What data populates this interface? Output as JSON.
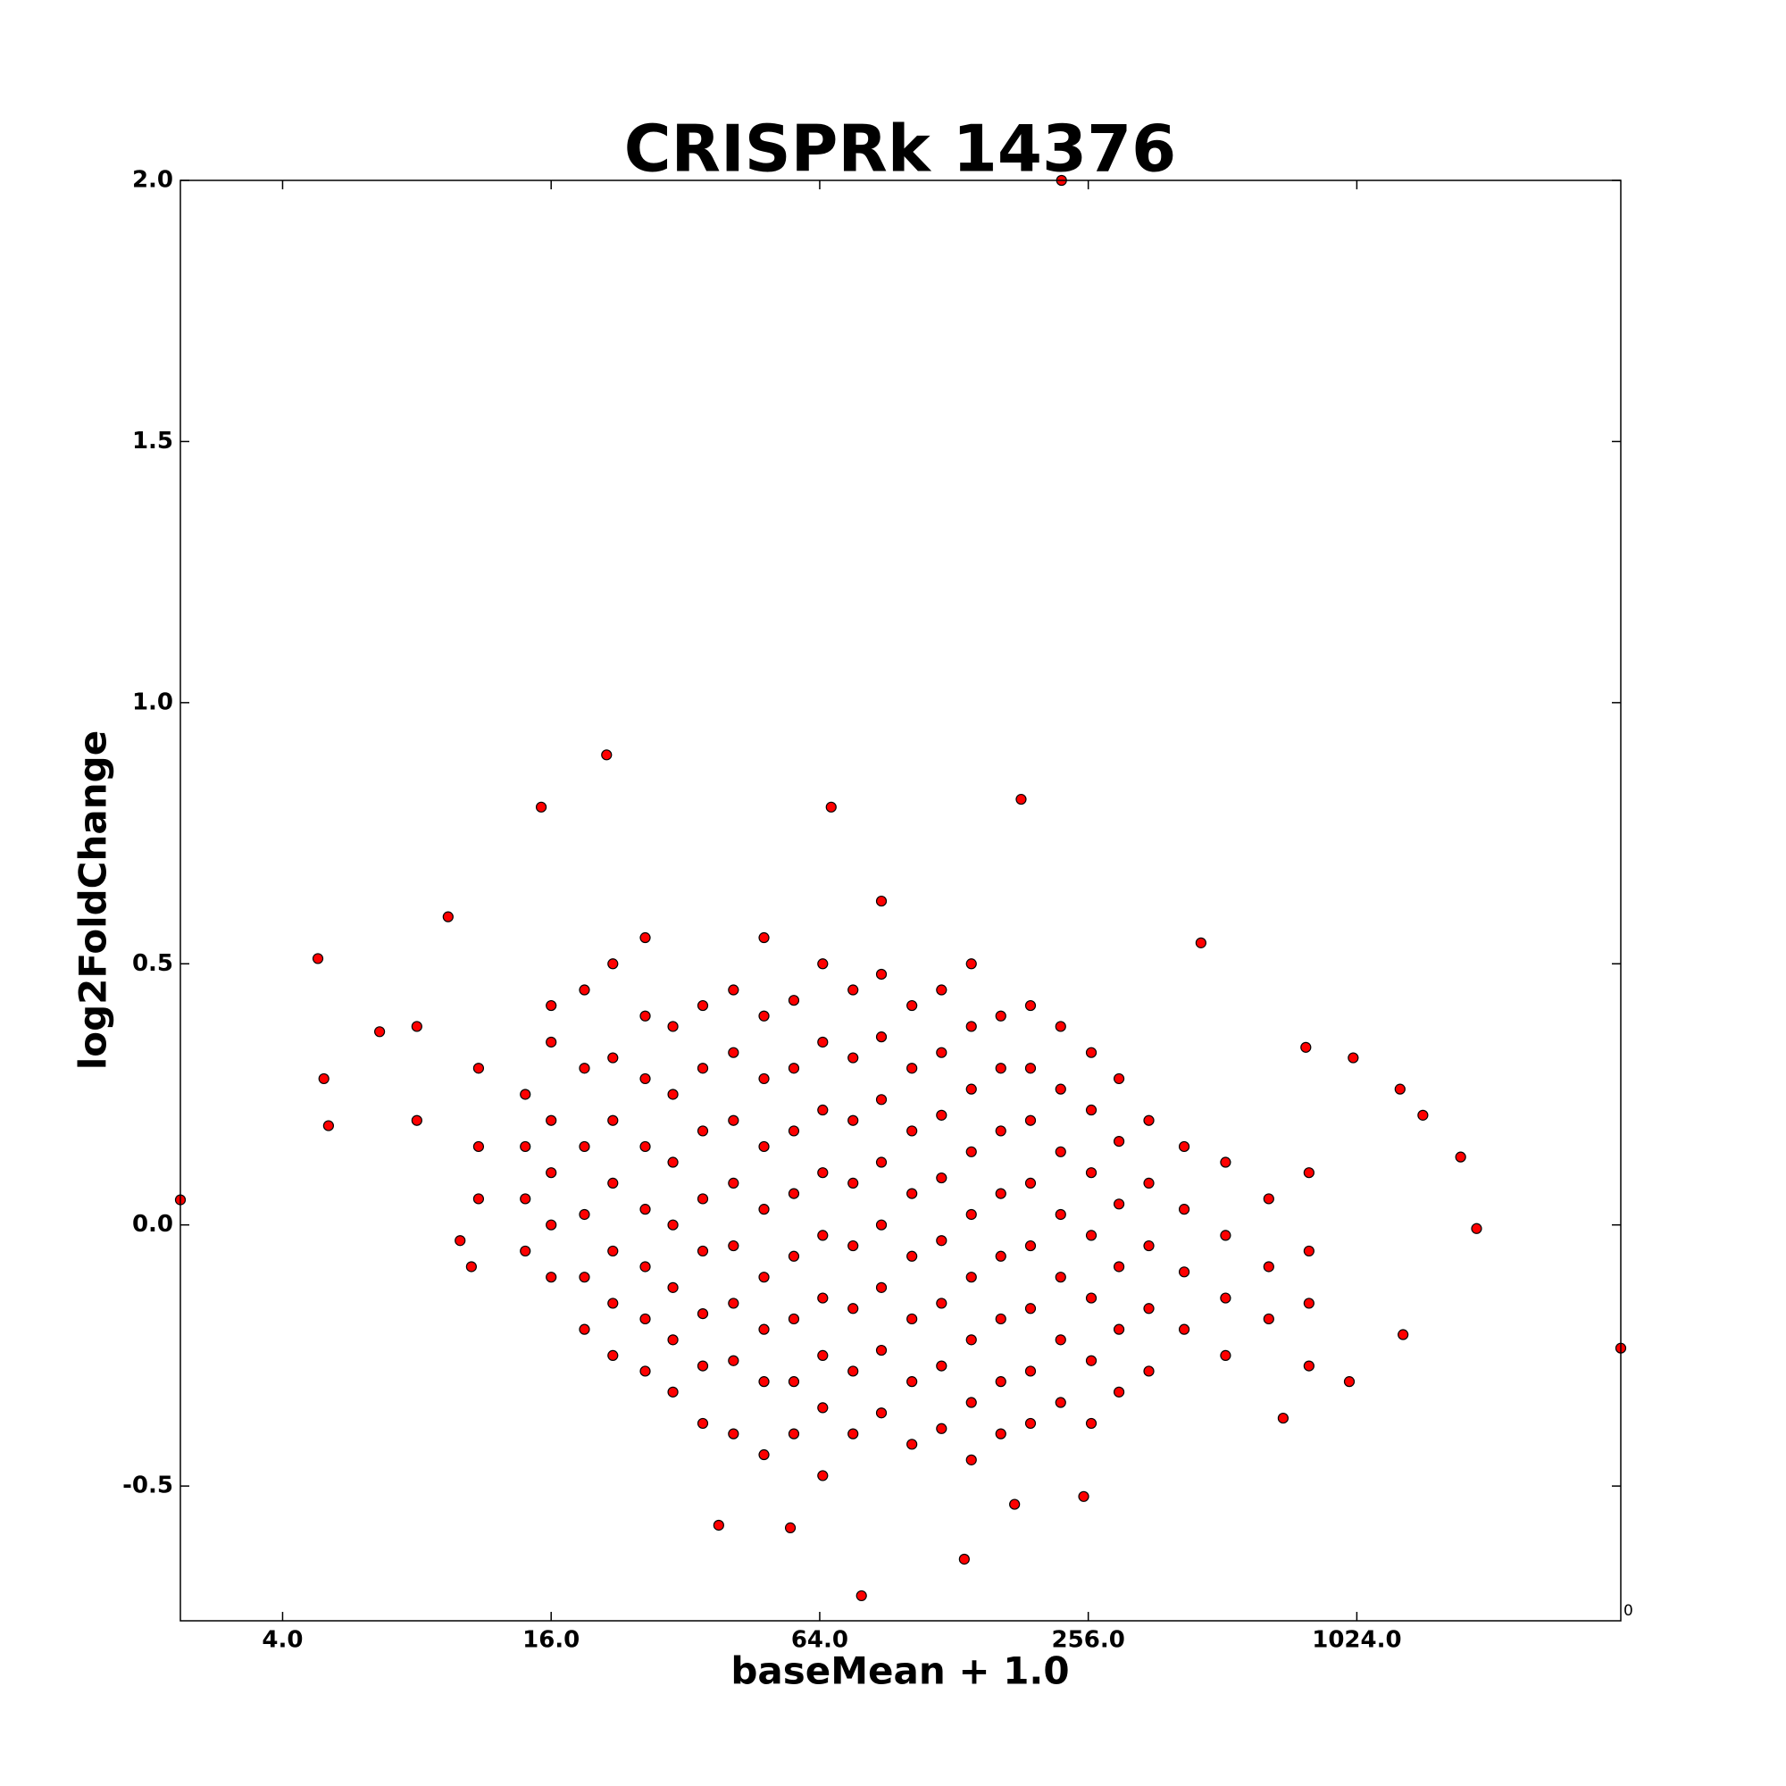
{
  "chart_data": {
    "type": "scatter",
    "title": "CRISPRk 14376",
    "xlabel": "baseMean + 1.0",
    "ylabel": "log2FoldChange",
    "annotation": "0",
    "xscale": "log2",
    "color": "#ff0000",
    "edgecolor": "#000000",
    "xlim": [
      2.36,
      4000
    ],
    "ylim": [
      -0.758,
      2.0
    ],
    "xticks": [
      {
        "value": 4,
        "label": "4.0"
      },
      {
        "value": 16,
        "label": "16.0"
      },
      {
        "value": 64,
        "label": "64.0"
      },
      {
        "value": 256,
        "label": "256.0"
      },
      {
        "value": 1024,
        "label": "1024.0"
      }
    ],
    "yticks": [
      -0.5,
      {
        "value": 0,
        "label": "0.0"
      },
      0.5,
      {
        "value": 1,
        "label": "1.0"
      },
      1.5,
      {
        "value": 2,
        "label": "2.0"
      }
    ],
    "x": [
      2.36,
      4000,
      223,
      21.3,
      67.9,
      181,
      15.2,
      79.4,
      135,
      1900,
      1750,
      1440,
      1280,
      1005,
      4.8,
      4.95,
      5.07,
      6.6,
      9.4,
      458,
      787,
      700,
      38,
      55,
      175,
      250,
      1300,
      985,
      10.6,
      10,
      14,
      14,
      14,
      14,
      16,
      16,
      16,
      16,
      16,
      16,
      19,
      19,
      19,
      19,
      19,
      19,
      22,
      22,
      22,
      22,
      22,
      22,
      22,
      26,
      26,
      26,
      26,
      26,
      26,
      26,
      26,
      30,
      30,
      30,
      30,
      30,
      30,
      30,
      35,
      35,
      35,
      35,
      35,
      35,
      35,
      35,
      41,
      41,
      41,
      41,
      41,
      41,
      41,
      41,
      48,
      48,
      48,
      48,
      48,
      48,
      48,
      48,
      48,
      56,
      56,
      56,
      56,
      56,
      56,
      56,
      56,
      65,
      65,
      65,
      65,
      65,
      65,
      65,
      65,
      65,
      76,
      76,
      76,
      76,
      76,
      76,
      76,
      76,
      88,
      88,
      88,
      88,
      88,
      88,
      88,
      88,
      88,
      103,
      103,
      103,
      103,
      103,
      103,
      103,
      103,
      120,
      120,
      120,
      120,
      120,
      120,
      120,
      120,
      140,
      140,
      140,
      140,
      140,
      140,
      140,
      140,
      140,
      163,
      163,
      163,
      163,
      163,
      163,
      163,
      163,
      190,
      190,
      190,
      190,
      190,
      190,
      190,
      190,
      222,
      222,
      222,
      222,
      222,
      222,
      222,
      260,
      260,
      260,
      260,
      260,
      260,
      260,
      300,
      300,
      300,
      300,
      300,
      300,
      350,
      350,
      350,
      350,
      350,
      420,
      420,
      420,
      420,
      520,
      520,
      520,
      520,
      650,
      650,
      650,
      800,
      800,
      800,
      800,
      11,
      11,
      11,
      8,
      8
    ],
    "values": [
      0.048,
      -0.236,
      2.0,
      0.9,
      0.8,
      0.815,
      0.8,
      -0.71,
      -0.64,
      -0.007,
      0.13,
      0.21,
      0.26,
      0.32,
      0.51,
      0.28,
      0.19,
      0.37,
      0.59,
      0.54,
      0.34,
      -0.37,
      -0.575,
      -0.58,
      -0.535,
      -0.52,
      -0.21,
      -0.3,
      -0.08,
      -0.03,
      0.25,
      0.05,
      -0.05,
      0.15,
      0.35,
      0.2,
      0.1,
      0,
      -0.1,
      0.42,
      0.45,
      0.3,
      0.15,
      0.02,
      -0.1,
      -0.2,
      0.5,
      0.32,
      0.2,
      0.08,
      -0.05,
      -0.15,
      -0.25,
      0.4,
      0.28,
      0.15,
      0.03,
      -0.08,
      -0.18,
      -0.28,
      0.55,
      0.38,
      0.25,
      0.12,
      0,
      -0.12,
      -0.22,
      -0.32,
      0.42,
      0.3,
      0.18,
      0.05,
      -0.05,
      -0.17,
      -0.27,
      -0.38,
      0.45,
      0.33,
      0.2,
      0.08,
      -0.04,
      -0.15,
      -0.26,
      -0.4,
      0.4,
      0.28,
      0.15,
      0.03,
      -0.1,
      -0.2,
      -0.3,
      -0.44,
      0.55,
      0.43,
      0.3,
      0.18,
      0.06,
      -0.06,
      -0.18,
      -0.3,
      -0.4,
      0.5,
      0.35,
      0.22,
      0.1,
      -0.02,
      -0.14,
      -0.25,
      -0.35,
      -0.48,
      0.45,
      0.32,
      0.2,
      0.08,
      -0.04,
      -0.16,
      -0.28,
      -0.4,
      0.48,
      0.36,
      0.24,
      0.12,
      0,
      -0.12,
      -0.24,
      -0.36,
      0.62,
      0.42,
      0.3,
      0.18,
      0.06,
      -0.06,
      -0.18,
      -0.3,
      -0.42,
      0.45,
      0.33,
      0.21,
      0.09,
      -0.03,
      -0.15,
      -0.27,
      -0.39,
      0.5,
      0.38,
      0.26,
      0.14,
      0.02,
      -0.1,
      -0.22,
      -0.34,
      -0.45,
      0.4,
      0.3,
      0.18,
      0.06,
      -0.06,
      -0.18,
      -0.3,
      -0.4,
      0.42,
      0.3,
      0.2,
      0.08,
      -0.04,
      -0.16,
      -0.28,
      -0.38,
      0.38,
      0.26,
      0.14,
      0.02,
      -0.1,
      -0.22,
      -0.34,
      0.33,
      0.22,
      0.1,
      -0.02,
      -0.14,
      -0.26,
      -0.38,
      0.28,
      0.16,
      0.04,
      -0.08,
      -0.2,
      -0.32,
      0.2,
      0.08,
      -0.04,
      -0.16,
      -0.28,
      0.15,
      0.03,
      -0.09,
      -0.2,
      0.12,
      -0.02,
      -0.14,
      -0.25,
      0.05,
      -0.08,
      -0.18,
      0.1,
      -0.05,
      -0.15,
      -0.27,
      0.3,
      0.15,
      0.05,
      0.38,
      0.2
    ]
  }
}
